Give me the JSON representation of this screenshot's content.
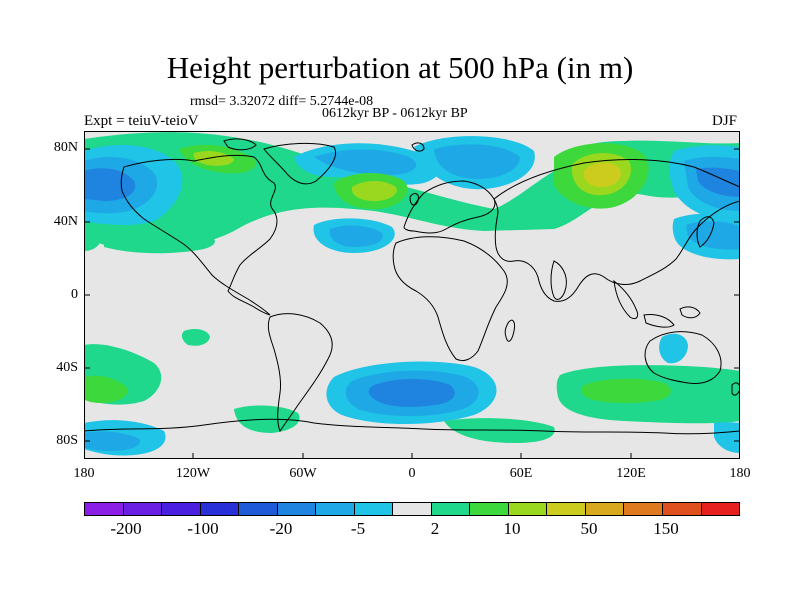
{
  "title": "Height perturbation at 500 hPa (in m)",
  "stats_line": "rmsd= 3.32072 diff= 5.2744e-08",
  "period_line": "0612kyr BP - 0612kyr BP",
  "experiment_label": "Expt = teiuV-teioV",
  "season_label": "DJF",
  "lat_labels": [
    "80N",
    "40N",
    "0",
    "40S",
    "80S"
  ],
  "lon_labels": [
    "180",
    "120W",
    "60W",
    "0",
    "60E",
    "120E",
    "180"
  ],
  "colorbar": {
    "colors": [
      "#8c1fe6",
      "#6a1fe3",
      "#4a1fe0",
      "#2a30d8",
      "#1f5ad8",
      "#1f84e0",
      "#1fa8e6",
      "#1fc4e6",
      "#e6e6e6",
      "#1fd88c",
      "#3cd83c",
      "#9ad81f",
      "#cccc1f",
      "#d8a81f",
      "#e07a1f",
      "#e0501f",
      "#e61f1f"
    ],
    "tick_labels": [
      "-200",
      "-100",
      "-20",
      "-5",
      "2",
      "10",
      "50",
      "150"
    ]
  },
  "map_background_color": "#e6e6e6"
}
